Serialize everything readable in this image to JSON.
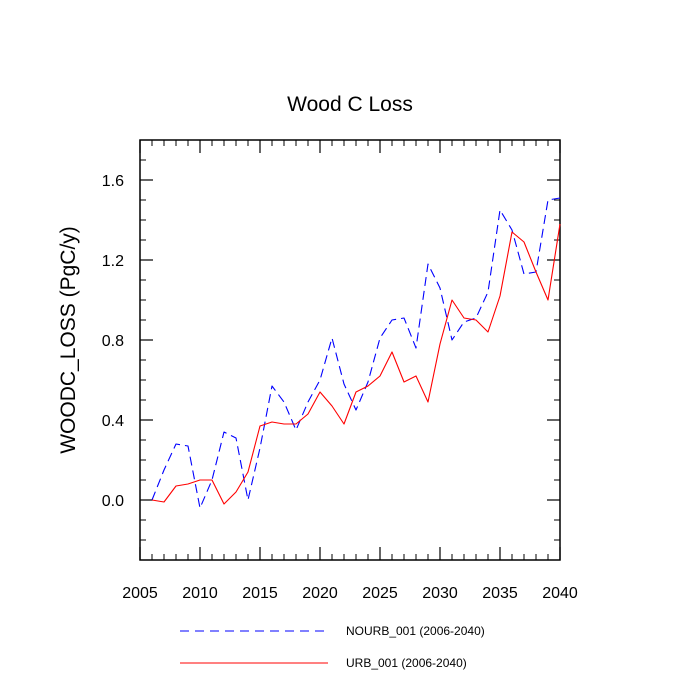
{
  "chart_data": {
    "type": "line",
    "title": "Wood C Loss",
    "xlabel": "",
    "ylabel": "WOODC_LOSS  (PgC/y)",
    "xlim": [
      2005,
      2040
    ],
    "ylim": [
      -0.3,
      1.8
    ],
    "xticks": [
      2005,
      2010,
      2015,
      2020,
      2025,
      2030,
      2035,
      2040
    ],
    "yticks": [
      0.0,
      0.4,
      0.8,
      1.2,
      1.6
    ],
    "ytick_labels": [
      "0.0",
      "0.4",
      "0.8",
      "1.2",
      "1.6"
    ],
    "x": [
      2006,
      2007,
      2008,
      2009,
      2010,
      2011,
      2012,
      2013,
      2014,
      2015,
      2016,
      2017,
      2018,
      2019,
      2020,
      2021,
      2022,
      2023,
      2024,
      2025,
      2026,
      2027,
      2028,
      2029,
      2030,
      2031,
      2032,
      2033,
      2034,
      2035,
      2036,
      2037,
      2038,
      2039,
      2040
    ],
    "series": [
      {
        "name": "NOURB_001 (2006-2040)",
        "color": "#0000ff",
        "dash": "dashed",
        "values": [
          0.0,
          0.15,
          0.28,
          0.27,
          -0.04,
          0.1,
          0.34,
          0.31,
          0.0,
          0.26,
          0.57,
          0.49,
          0.35,
          0.49,
          0.6,
          0.81,
          0.58,
          0.45,
          0.59,
          0.81,
          0.9,
          0.91,
          0.76,
          1.18,
          1.06,
          0.8,
          0.89,
          0.91,
          1.04,
          1.45,
          1.35,
          1.13,
          1.14,
          1.5,
          1.51
        ]
      },
      {
        "name": "URB_001 (2006-2040)",
        "color": "#ff0000",
        "dash": "solid",
        "values": [
          0.0,
          -0.01,
          0.07,
          0.08,
          0.1,
          0.1,
          -0.02,
          0.04,
          0.14,
          0.37,
          0.39,
          0.38,
          0.38,
          0.43,
          0.54,
          0.47,
          0.38,
          0.54,
          0.57,
          0.62,
          0.74,
          0.59,
          0.62,
          0.49,
          0.78,
          1.0,
          0.91,
          0.9,
          0.84,
          1.02,
          1.34,
          1.29,
          1.14,
          1.0,
          1.38
        ]
      }
    ],
    "legend_position": "bottom"
  }
}
